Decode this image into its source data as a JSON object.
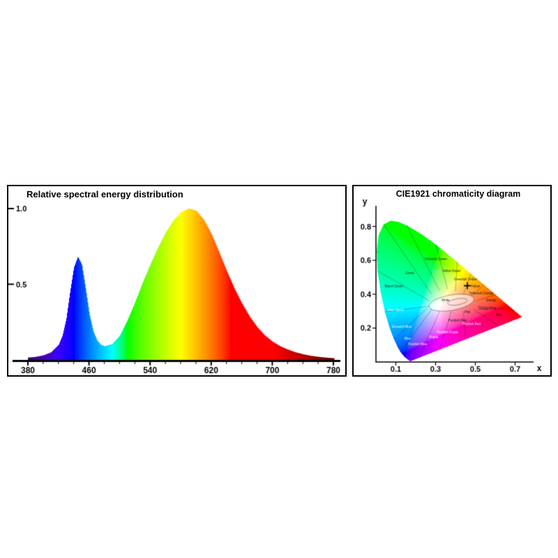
{
  "colors": {
    "axis": "#000000",
    "text": "#000000",
    "panel_border": "#000000",
    "background": "#ffffff",
    "marker": "#000000"
  },
  "chart_data": [
    {
      "type": "area",
      "title": "Relative spectral energy distribution",
      "xlabel": "",
      "ylabel": "",
      "xlim": [
        380,
        780
      ],
      "ylim": [
        0,
        1.05
      ],
      "x_ticks": [
        380,
        460,
        540,
        620,
        700,
        780
      ],
      "y_ticks": [
        {
          "label": "1.0",
          "value": 1.0
        },
        {
          "label": "0.5",
          "value": 0.5
        }
      ],
      "palette": "visible-spectrum",
      "x": [
        380,
        390,
        400,
        410,
        420,
        425,
        430,
        435,
        440,
        445,
        450,
        455,
        460,
        465,
        470,
        475,
        480,
        490,
        500,
        510,
        520,
        530,
        540,
        550,
        560,
        570,
        580,
        590,
        600,
        610,
        620,
        630,
        640,
        650,
        660,
        670,
        680,
        690,
        700,
        710,
        720,
        730,
        740,
        750,
        760,
        770,
        780
      ],
      "values": [
        0.015,
        0.02,
        0.03,
        0.05,
        0.1,
        0.16,
        0.27,
        0.45,
        0.61,
        0.68,
        0.63,
        0.47,
        0.3,
        0.19,
        0.13,
        0.1,
        0.09,
        0.105,
        0.16,
        0.26,
        0.38,
        0.51,
        0.63,
        0.74,
        0.84,
        0.92,
        0.975,
        1.0,
        0.985,
        0.925,
        0.83,
        0.71,
        0.585,
        0.47,
        0.37,
        0.285,
        0.215,
        0.16,
        0.12,
        0.09,
        0.068,
        0.05,
        0.037,
        0.027,
        0.02,
        0.015,
        0.011
      ]
    },
    {
      "type": "chromaticity",
      "title": "CIE1921 chromaticity diagram",
      "xlabel": "x",
      "ylabel": "y",
      "xlim": [
        0,
        0.8
      ],
      "ylim": [
        0,
        0.9
      ],
      "x_ticks": [
        0.1,
        0.3,
        0.5,
        0.7
      ],
      "y_ticks": [
        0.2,
        0.4,
        0.6,
        0.8
      ],
      "marker": {
        "symbol": "+",
        "x": 0.46,
        "y": 0.45
      },
      "spectral_locus": [
        [
          380,
          0.1741,
          0.005
        ],
        [
          390,
          0.1738,
          0.0049
        ],
        [
          400,
          0.1733,
          0.0048
        ],
        [
          410,
          0.1726,
          0.0048
        ],
        [
          420,
          0.1714,
          0.0051
        ],
        [
          430,
          0.1689,
          0.0069
        ],
        [
          440,
          0.1644,
          0.0109
        ],
        [
          450,
          0.1566,
          0.0177
        ],
        [
          460,
          0.144,
          0.0297
        ],
        [
          470,
          0.1241,
          0.0578
        ],
        [
          475,
          0.1096,
          0.0868
        ],
        [
          480,
          0.0913,
          0.1327
        ],
        [
          485,
          0.0687,
          0.2007
        ],
        [
          490,
          0.0454,
          0.295
        ],
        [
          495,
          0.0235,
          0.4127
        ],
        [
          500,
          0.0082,
          0.5384
        ],
        [
          505,
          0.0039,
          0.6548
        ],
        [
          510,
          0.0139,
          0.7502
        ],
        [
          515,
          0.0389,
          0.812
        ],
        [
          520,
          0.0743,
          0.8338
        ],
        [
          525,
          0.1142,
          0.8262
        ],
        [
          530,
          0.1547,
          0.8059
        ],
        [
          540,
          0.2296,
          0.7543
        ],
        [
          550,
          0.3016,
          0.6923
        ],
        [
          560,
          0.3731,
          0.6245
        ],
        [
          570,
          0.4441,
          0.5547
        ],
        [
          580,
          0.5125,
          0.4866
        ],
        [
          590,
          0.5752,
          0.4242
        ],
        [
          600,
          0.627,
          0.3725
        ],
        [
          610,
          0.6658,
          0.334
        ],
        [
          620,
          0.6915,
          0.3083
        ],
        [
          630,
          0.7079,
          0.292
        ],
        [
          640,
          0.719,
          0.2809
        ],
        [
          650,
          0.726,
          0.274
        ],
        [
          660,
          0.73,
          0.27
        ],
        [
          680,
          0.7334,
          0.2666
        ],
        [
          700,
          0.7347,
          0.2653
        ]
      ],
      "white_region": {
        "outer": {
          "cx": 0.38,
          "cy": 0.35,
          "rx": 0.115,
          "ry": 0.045,
          "rot_deg": -10
        },
        "inner": {
          "cx": 0.41,
          "cy": 0.355,
          "rx": 0.05,
          "ry": 0.018,
          "rot_deg": -10
        }
      },
      "region_lines": [
        [
          0.27,
          0.33,
          0.045,
          0.295
        ],
        [
          0.27,
          0.36,
          0.008,
          0.538
        ],
        [
          0.28,
          0.4,
          0.039,
          0.812
        ],
        [
          0.32,
          0.42,
          0.155,
          0.806
        ],
        [
          0.36,
          0.43,
          0.302,
          0.692
        ],
        [
          0.4,
          0.42,
          0.409,
          0.594
        ],
        [
          0.44,
          0.4,
          0.478,
          0.52
        ],
        [
          0.47,
          0.38,
          0.544,
          0.455
        ],
        [
          0.5,
          0.36,
          0.603,
          0.397
        ],
        [
          0.51,
          0.33,
          0.692,
          0.308
        ],
        [
          0.49,
          0.31,
          0.62,
          0.212
        ],
        [
          0.44,
          0.3,
          0.45,
          0.133
        ],
        [
          0.38,
          0.3,
          0.32,
          0.073
        ],
        [
          0.32,
          0.3,
          0.22,
          0.026
        ],
        [
          0.28,
          0.31,
          0.124,
          0.058
        ],
        [
          0.26,
          0.32,
          0.091,
          0.133
        ]
      ],
      "region_labels": [
        {
          "text": "Green",
          "x": 0.17,
          "y": 0.52,
          "light": false
        },
        {
          "text": "Yellowish Green",
          "x": 0.3,
          "y": 0.6,
          "light": false
        },
        {
          "text": "Yellow Green",
          "x": 0.38,
          "y": 0.53,
          "light": false
        },
        {
          "text": "Greenish Yellow",
          "x": 0.45,
          "y": 0.48,
          "light": false
        },
        {
          "text": "Yellow",
          "x": 0.5,
          "y": 0.44,
          "light": false
        },
        {
          "text": "Yellowish Orange",
          "x": 0.53,
          "y": 0.4,
          "light": false
        },
        {
          "text": "Orange",
          "x": 0.58,
          "y": 0.36,
          "light": false
        },
        {
          "text": "Orange Pink",
          "x": 0.56,
          "y": 0.31,
          "light": false
        },
        {
          "text": "Red",
          "x": 0.62,
          "y": 0.27,
          "light": false
        },
        {
          "text": "Pink",
          "x": 0.46,
          "y": 0.29,
          "light": false
        },
        {
          "text": "Purplish Red",
          "x": 0.48,
          "y": 0.22,
          "light": true
        },
        {
          "text": "Purplish Pink",
          "x": 0.41,
          "y": 0.24,
          "light": false
        },
        {
          "text": "Reddish Purple",
          "x": 0.36,
          "y": 0.17,
          "light": true
        },
        {
          "text": "Purple",
          "x": 0.29,
          "y": 0.14,
          "light": true
        },
        {
          "text": "Purplish Blue",
          "x": 0.21,
          "y": 0.1,
          "light": true
        },
        {
          "text": "Blue",
          "x": 0.16,
          "y": 0.13,
          "light": true
        },
        {
          "text": "Greenish Blue",
          "x": 0.13,
          "y": 0.2,
          "light": true
        },
        {
          "text": "Blue Green",
          "x": 0.1,
          "y": 0.3,
          "light": true
        },
        {
          "text": "Bluish Green",
          "x": 0.09,
          "y": 0.44,
          "light": false
        },
        {
          "text": "White",
          "x": 0.35,
          "y": 0.36,
          "light": false
        }
      ]
    }
  ]
}
